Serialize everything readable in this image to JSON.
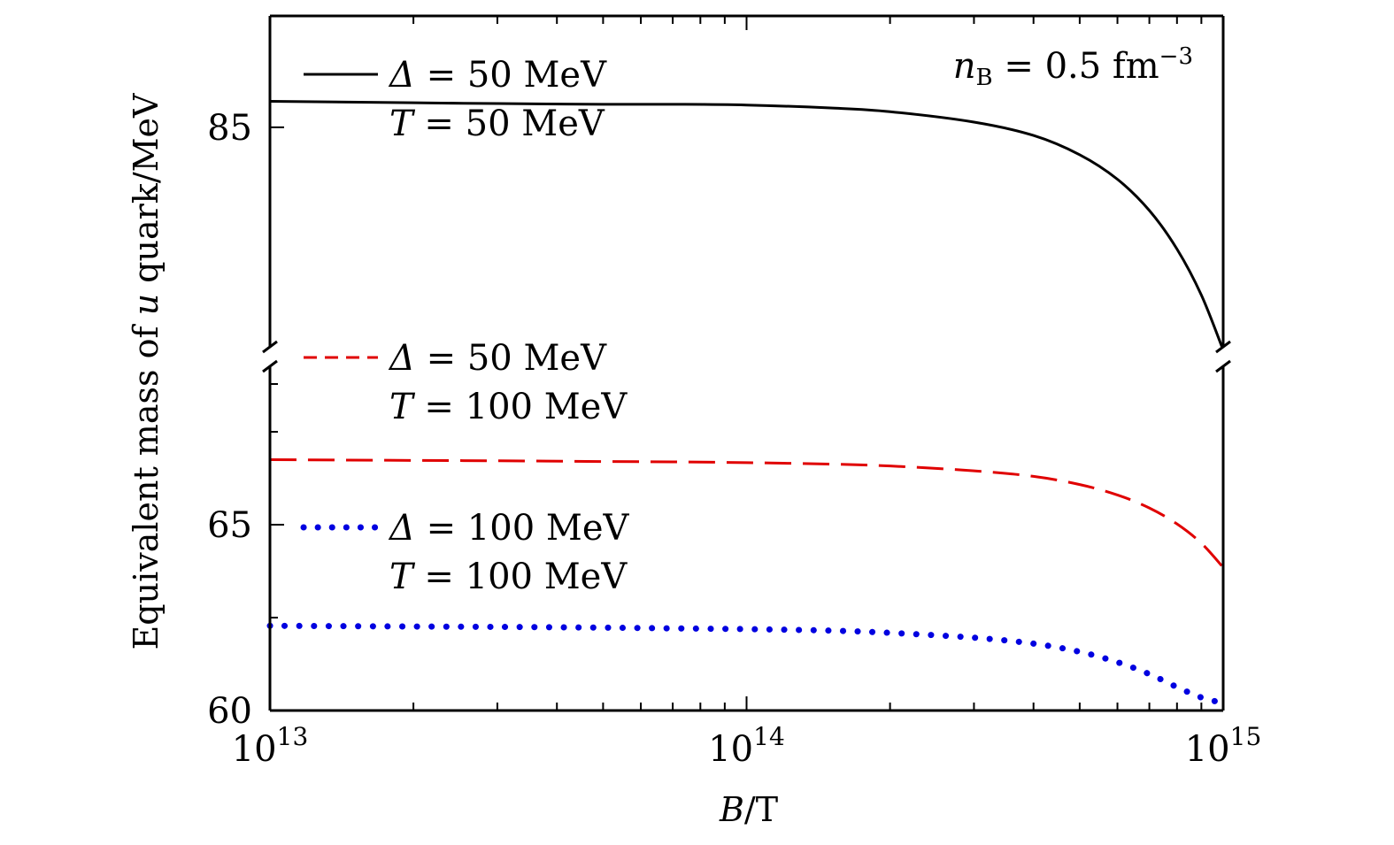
{
  "chart_data": {
    "type": "line",
    "title": "",
    "annotation": {
      "prefix": "n",
      "sub": "B",
      "middle": " = 0.5 fm",
      "sup": "−3"
    },
    "x_axis": {
      "scale": "log",
      "var": "B",
      "unit": "/T",
      "range": [
        10000000000000.0,
        1000000000000000.0
      ],
      "ticks": [
        {
          "value": 10000000000000.0,
          "base": "10",
          "exp": "13"
        },
        {
          "value": 100000000000000.0,
          "base": "10",
          "exp": "14"
        },
        {
          "value": 1000000000000000.0,
          "base": "10",
          "exp": "15"
        }
      ]
    },
    "y_axis": {
      "label_pre": "Equivalent mass of ",
      "label_var": "u",
      "label_post": " quark/MeV",
      "broken": true,
      "upper_segment": {
        "range": [
          81.9,
          86.5
        ]
      },
      "lower_segment": {
        "range": [
          60,
          69.5
        ]
      },
      "tick_labels": [
        {
          "value": 85,
          "text": "85"
        },
        {
          "value": 65,
          "text": "65"
        },
        {
          "value": 60,
          "text": "60"
        }
      ],
      "minor_ticks_lower": [
        60,
        65,
        67.5
      ]
    },
    "series": [
      {
        "name": "Δ = 50 MeV, T = 50 MeV",
        "segment": "upper",
        "style": "solid",
        "color": "#000000",
        "legend": {
          "line1_var": "Δ",
          "line1_rest": " = 50 MeV",
          "line2_var": "T",
          "line2_rest": " = 50 MeV"
        },
        "x": [
          10000000000000.0,
          20000000000000.0,
          30000000000000.0,
          50000000000000.0,
          70000000000000.0,
          100000000000000.0,
          150000000000000.0,
          200000000000000.0,
          300000000000000.0,
          400000000000000.0,
          500000000000000.0,
          600000000000000.0,
          700000000000000.0,
          800000000000000.0,
          900000000000000.0,
          1000000000000000.0
        ],
        "values": [
          85.35,
          85.33,
          85.32,
          85.31,
          85.31,
          85.3,
          85.26,
          85.21,
          85.07,
          84.89,
          84.63,
          84.3,
          83.88,
          83.36,
          82.74,
          82.0
        ]
      },
      {
        "name": "Δ = 50 MeV, T = 100 MeV",
        "segment": "lower",
        "style": "dashed",
        "color": "#e00000",
        "legend": {
          "line1_var": "Δ",
          "line1_rest": " = 50 MeV",
          "line2_var": "T",
          "line2_rest": " = 100 MeV"
        },
        "x": [
          10000000000000.0,
          20000000000000.0,
          30000000000000.0,
          50000000000000.0,
          70000000000000.0,
          100000000000000.0,
          150000000000000.0,
          200000000000000.0,
          300000000000000.0,
          400000000000000.0,
          500000000000000.0,
          600000000000000.0,
          700000000000000.0,
          800000000000000.0,
          900000000000000.0,
          1000000000000000.0
        ],
        "values": [
          66.75,
          66.73,
          66.72,
          66.7,
          66.69,
          66.67,
          66.63,
          66.58,
          66.45,
          66.3,
          66.08,
          65.8,
          65.45,
          65.02,
          64.5,
          63.85
        ]
      },
      {
        "name": "Δ = 100 MeV, T = 100 MeV",
        "segment": "lower",
        "style": "dotted",
        "color": "#0000e0",
        "legend": {
          "line1_var": "Δ",
          "line1_rest": " = 100 MeV",
          "line2_var": "T",
          "line2_rest": " = 100 MeV"
        },
        "x": [
          10000000000000.0,
          20000000000000.0,
          30000000000000.0,
          50000000000000.0,
          70000000000000.0,
          100000000000000.0,
          150000000000000.0,
          200000000000000.0,
          300000000000000.0,
          400000000000000.0,
          500000000000000.0,
          600000000000000.0,
          700000000000000.0,
          800000000000000.0,
          900000000000000.0,
          1000000000000000.0
        ],
        "values": [
          62.28,
          62.26,
          62.25,
          62.23,
          62.21,
          62.19,
          62.15,
          62.09,
          61.96,
          61.8,
          61.58,
          61.3,
          60.98,
          60.63,
          60.35,
          60.2
        ]
      }
    ]
  }
}
